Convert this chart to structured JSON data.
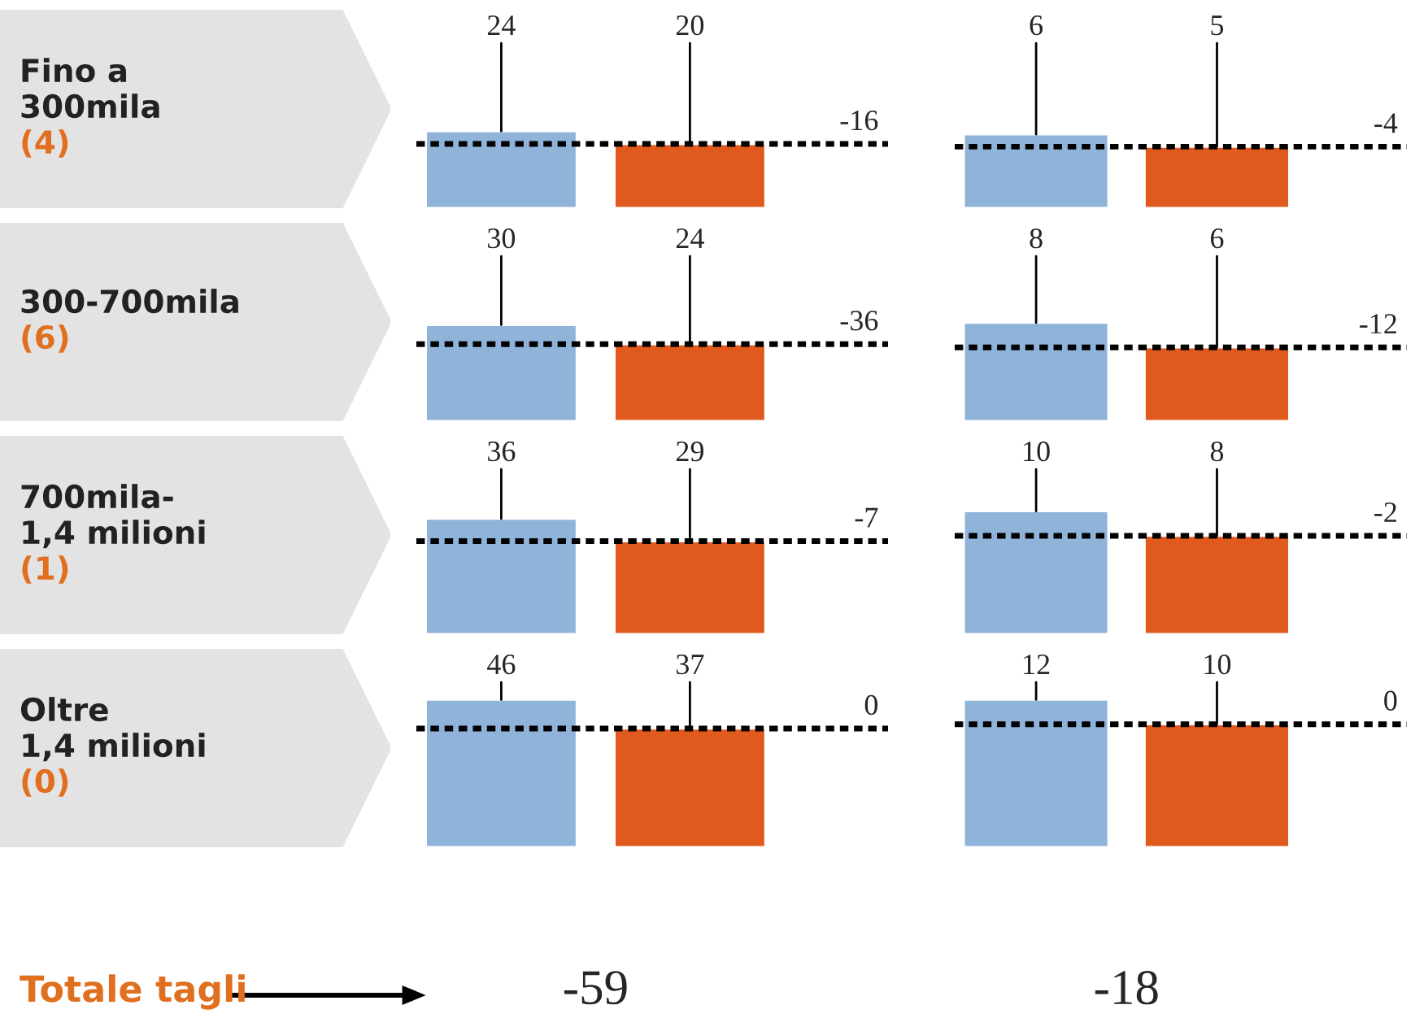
{
  "chart_data": [
    {
      "type": "other",
      "title": "Fino a\n300mila\n(4)"
    },
    {
      "type": "bar",
      "categories": [
        null,
        null
      ],
      "values": [
        24,
        20
      ],
      "colors": [
        "#8fb3d9",
        "#e05a1e"
      ],
      "data_labels": true,
      "ref_lines": [
        {
          "axis": "y",
          "value": 20,
          "line_style": "dotted",
          "color": "#000000"
        }
      ],
      "annotations": [
        "-16"
      ]
    },
    {
      "type": "bar",
      "categories": [
        null,
        null
      ],
      "values": [
        6,
        5
      ],
      "colors": [
        "#8fb3d9",
        "#e05a1e"
      ],
      "data_labels": true,
      "ref_lines": [
        {
          "axis": "y",
          "value": 5,
          "line_style": "dotted",
          "color": "#000000"
        }
      ],
      "annotations": [
        "-4"
      ]
    },
    {
      "type": "other",
      "title": "300-700mila\n(6)"
    },
    {
      "type": "bar",
      "categories": [
        null,
        null
      ],
      "values": [
        30,
        24
      ],
      "colors": [
        "#8fb3d9",
        "#e05a1e"
      ],
      "data_labels": true,
      "ref_lines": [
        {
          "axis": "y",
          "value": 24,
          "line_style": "dotted",
          "color": "#000000"
        }
      ],
      "annotations": [
        "-36"
      ]
    },
    {
      "type": "bar",
      "categories": [
        null,
        null
      ],
      "values": [
        8,
        6
      ],
      "colors": [
        "#8fb3d9",
        "#e05a1e"
      ],
      "data_labels": true,
      "ref_lines": [
        {
          "axis": "y",
          "value": 6,
          "line_style": "dotted",
          "color": "#000000"
        }
      ],
      "annotations": [
        "-12"
      ]
    },
    {
      "type": "other",
      "title": "700mila-\n1,4 milioni\n(1)"
    },
    {
      "type": "bar",
      "categories": [
        null,
        null
      ],
      "values": [
        36,
        29
      ],
      "colors": [
        "#8fb3d9",
        "#e05a1e"
      ],
      "data_labels": true,
      "ref_lines": [
        {
          "axis": "y",
          "value": 29,
          "line_style": "dotted",
          "color": "#000000"
        }
      ],
      "annotations": [
        "-7"
      ]
    },
    {
      "type": "bar",
      "categories": [
        null,
        null
      ],
      "values": [
        10,
        8
      ],
      "colors": [
        "#8fb3d9",
        "#e05a1e"
      ],
      "data_labels": true,
      "ref_lines": [
        {
          "axis": "y",
          "value": 8,
          "line_style": "dotted",
          "color": "#000000"
        }
      ],
      "annotations": [
        "-2"
      ]
    },
    {
      "type": "other",
      "title": "Oltre\n1,4 milioni\n(0)"
    },
    {
      "type": "bar",
      "categories": [
        null,
        null
      ],
      "values": [
        46,
        37
      ],
      "colors": [
        "#8fb3d9",
        "#e05a1e"
      ],
      "data_labels": true,
      "ref_lines": [
        {
          "axis": "y",
          "value": 37,
          "line_style": "dotted",
          "color": "#000000"
        }
      ],
      "annotations": [
        "0",
        "-59"
      ]
    },
    {
      "type": "bar",
      "categories": [
        null,
        null
      ],
      "values": [
        12,
        10
      ],
      "colors": [
        "#8fb3d9",
        "#e05a1e"
      ],
      "data_labels": true,
      "ref_lines": [
        {
          "axis": "y",
          "value": 10,
          "line_style": "dotted",
          "color": "#000000"
        }
      ],
      "annotations": [
        "0",
        "-18"
      ]
    },
    {
      "type": "other",
      "title": "Totale tagli"
    }
  ]
}
